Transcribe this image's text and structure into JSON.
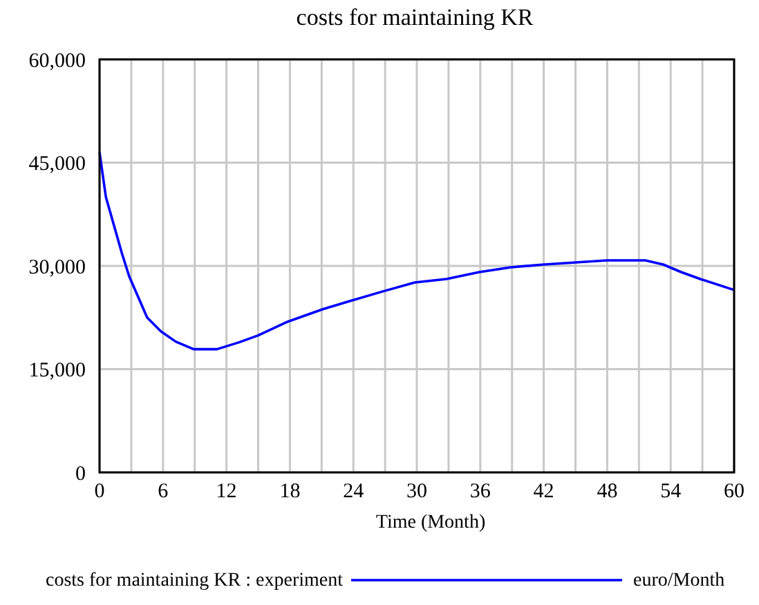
{
  "chart_data": {
    "type": "line",
    "title": "costs for maintaining KR",
    "xlabel": "Time (Month)",
    "xlim": [
      0,
      60
    ],
    "xticks": [
      0,
      {
        "value": 3,
        "label": null
      },
      6,
      {
        "value": 9,
        "label": null
      },
      12,
      {
        "value": 15,
        "label": null
      },
      18,
      {
        "value": 21,
        "label": null
      },
      24,
      {
        "value": 27,
        "label": null
      },
      30,
      {
        "value": 33,
        "label": null
      },
      36,
      {
        "value": 39,
        "label": null
      },
      42,
      {
        "value": 45,
        "label": null
      },
      48,
      {
        "value": 51,
        "label": null
      },
      54,
      {
        "value": 57,
        "label": null
      },
      60
    ],
    "ylim": [
      0,
      60000
    ],
    "yticks": [
      {
        "value": 0,
        "label": "0"
      },
      {
        "value": 15000,
        "label": "15,000"
      },
      {
        "value": 30000,
        "label": "30,000"
      },
      {
        "value": 45000,
        "label": "45,000"
      },
      {
        "value": 60000,
        "label": "60,000"
      }
    ],
    "grid": true,
    "legend": "bottom",
    "annotations": [
      "euro/Month"
    ],
    "series": [
      {
        "name": "costs for maintaining KR : experiment",
        "color": "#0000ff",
        "x": [
          0,
          0.6,
          2.1,
          2.8,
          4.5,
          5.8,
          7.2,
          8.9,
          11.1,
          13.2,
          15,
          17.8,
          21.1,
          23.7,
          26.8,
          29.8,
          32.8,
          35.9,
          38.9,
          42,
          45,
          48,
          51.6,
          53.3,
          55,
          56.8,
          60
        ],
        "values": [
          46500,
          40000,
          31900,
          28500,
          22500,
          20500,
          19000,
          17900,
          17900,
          18900,
          19900,
          21900,
          23700,
          24900,
          26300,
          27600,
          28100,
          29100,
          29800,
          30200,
          30500,
          30800,
          30800,
          30200,
          29100,
          28100,
          26500
        ]
      }
    ]
  }
}
